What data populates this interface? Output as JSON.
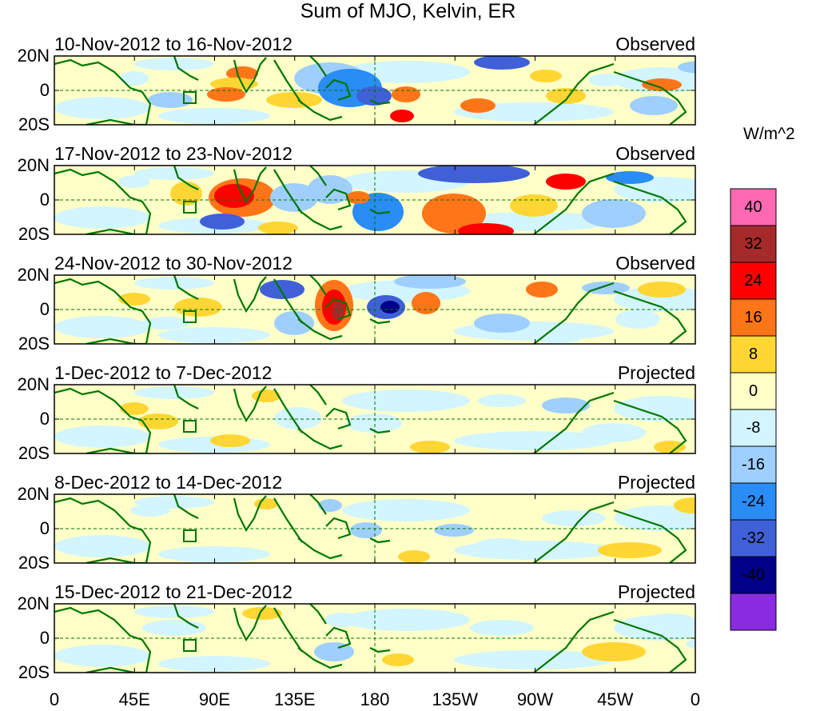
{
  "title": "Sum of MJO, Kelvin, ER",
  "units": "W/m^2",
  "lat_labels": [
    "20N",
    "0",
    "20S"
  ],
  "lon_labels": [
    "0",
    "45E",
    "90E",
    "135E",
    "180",
    "135W",
    "90W",
    "45W",
    "0"
  ],
  "colorbar": {
    "labels": [
      "40",
      "32",
      "24",
      "16",
      "8",
      "0",
      "-8",
      "-16",
      "-24",
      "-32",
      "-40"
    ],
    "colors": [
      "#ff69b4",
      "#a52a2a",
      "#ff0000",
      "#ff7518",
      "#ffd633",
      "#ffffc8",
      "#d2f5ff",
      "#9fcfff",
      "#2a8cf5",
      "#4060d8",
      "#000088",
      "#8a2be2"
    ]
  },
  "colors": {
    "coast": "#007700",
    "dashed": "#007700"
  },
  "panels": [
    {
      "date": "10-Nov-2012 to 16-Nov-2012",
      "kind": "Observed"
    },
    {
      "date": "17-Nov-2012 to 23-Nov-2012",
      "kind": "Observed"
    },
    {
      "date": "24-Nov-2012 to 30-Nov-2012",
      "kind": "Observed"
    },
    {
      "date": "1-Dec-2012 to 7-Dec-2012",
      "kind": "Projected"
    },
    {
      "date": "8-Dec-2012 to 14-Dec-2012",
      "kind": "Projected"
    },
    {
      "date": "15-Dec-2012 to 21-Dec-2012",
      "kind": "Projected"
    }
  ]
}
